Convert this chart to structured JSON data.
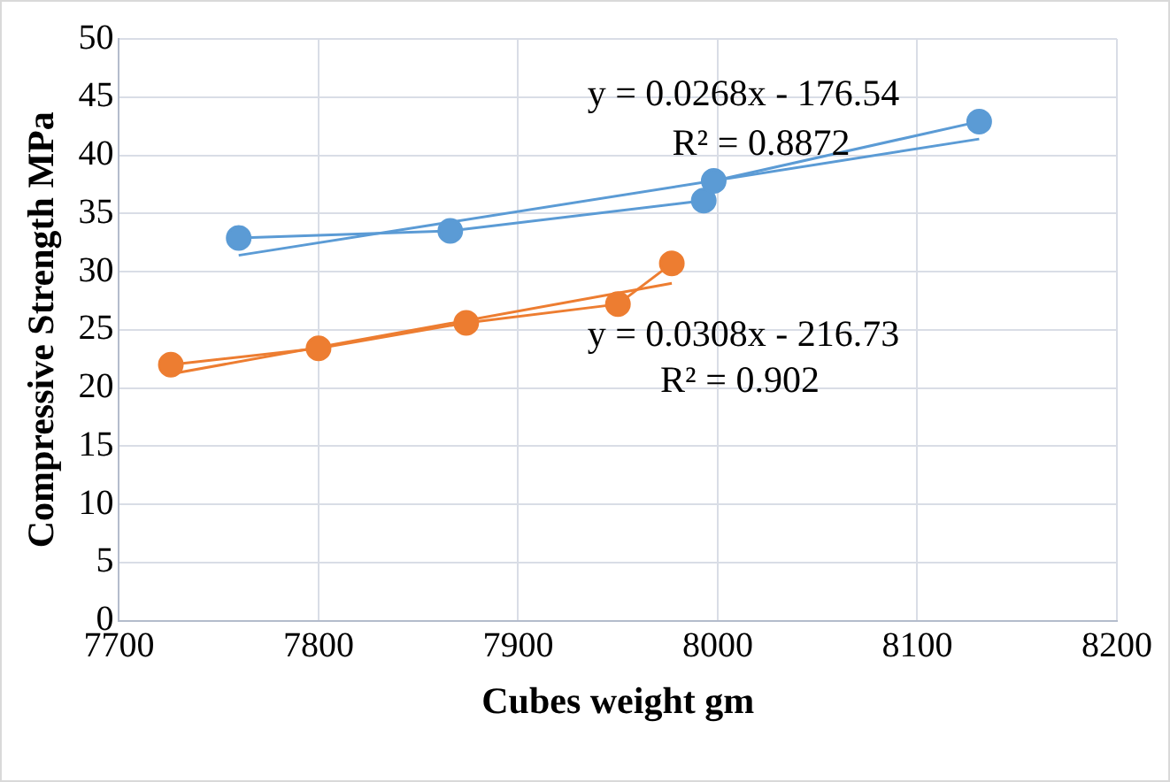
{
  "chart_data": {
    "type": "scatter",
    "xlabel": "Cubes weight gm",
    "ylabel": "Compressive Strength MPa",
    "xlim": [
      7700,
      8200
    ],
    "xticks": [
      7700,
      7800,
      7900,
      8000,
      8100,
      8200
    ],
    "ylim": [
      0,
      50
    ],
    "yticks": [
      0,
      5,
      10,
      15,
      20,
      25,
      30,
      35,
      40,
      45,
      50
    ],
    "grid": true,
    "legend": false,
    "series": [
      {
        "type": "line",
        "color": "#5b9bd5",
        "marker": "circle",
        "x": [
          7760,
          7866,
          7993,
          7998,
          8131
        ],
        "values": [
          32.9,
          33.5,
          36.1,
          37.8,
          42.9
        ]
      },
      {
        "type": "line",
        "color": "#5b9bd5",
        "marker": "none",
        "x": [
          7760,
          8131
        ],
        "values": [
          31.4,
          41.4
        ]
      },
      {
        "type": "line",
        "color": "#ed7d31",
        "marker": "circle",
        "x": [
          7726,
          7800,
          7874,
          7950,
          7977
        ],
        "values": [
          22.0,
          23.4,
          25.6,
          27.2,
          30.7
        ]
      },
      {
        "type": "line",
        "color": "#ed7d31",
        "marker": "none",
        "x": [
          7726,
          7977
        ],
        "values": [
          21.2,
          29.0
        ]
      }
    ],
    "annotations": [
      "y = 0.0268x - 176.54",
      "R² = 0.8872",
      "y = 0.0308x - 216.73",
      "R² = 0.902"
    ]
  }
}
